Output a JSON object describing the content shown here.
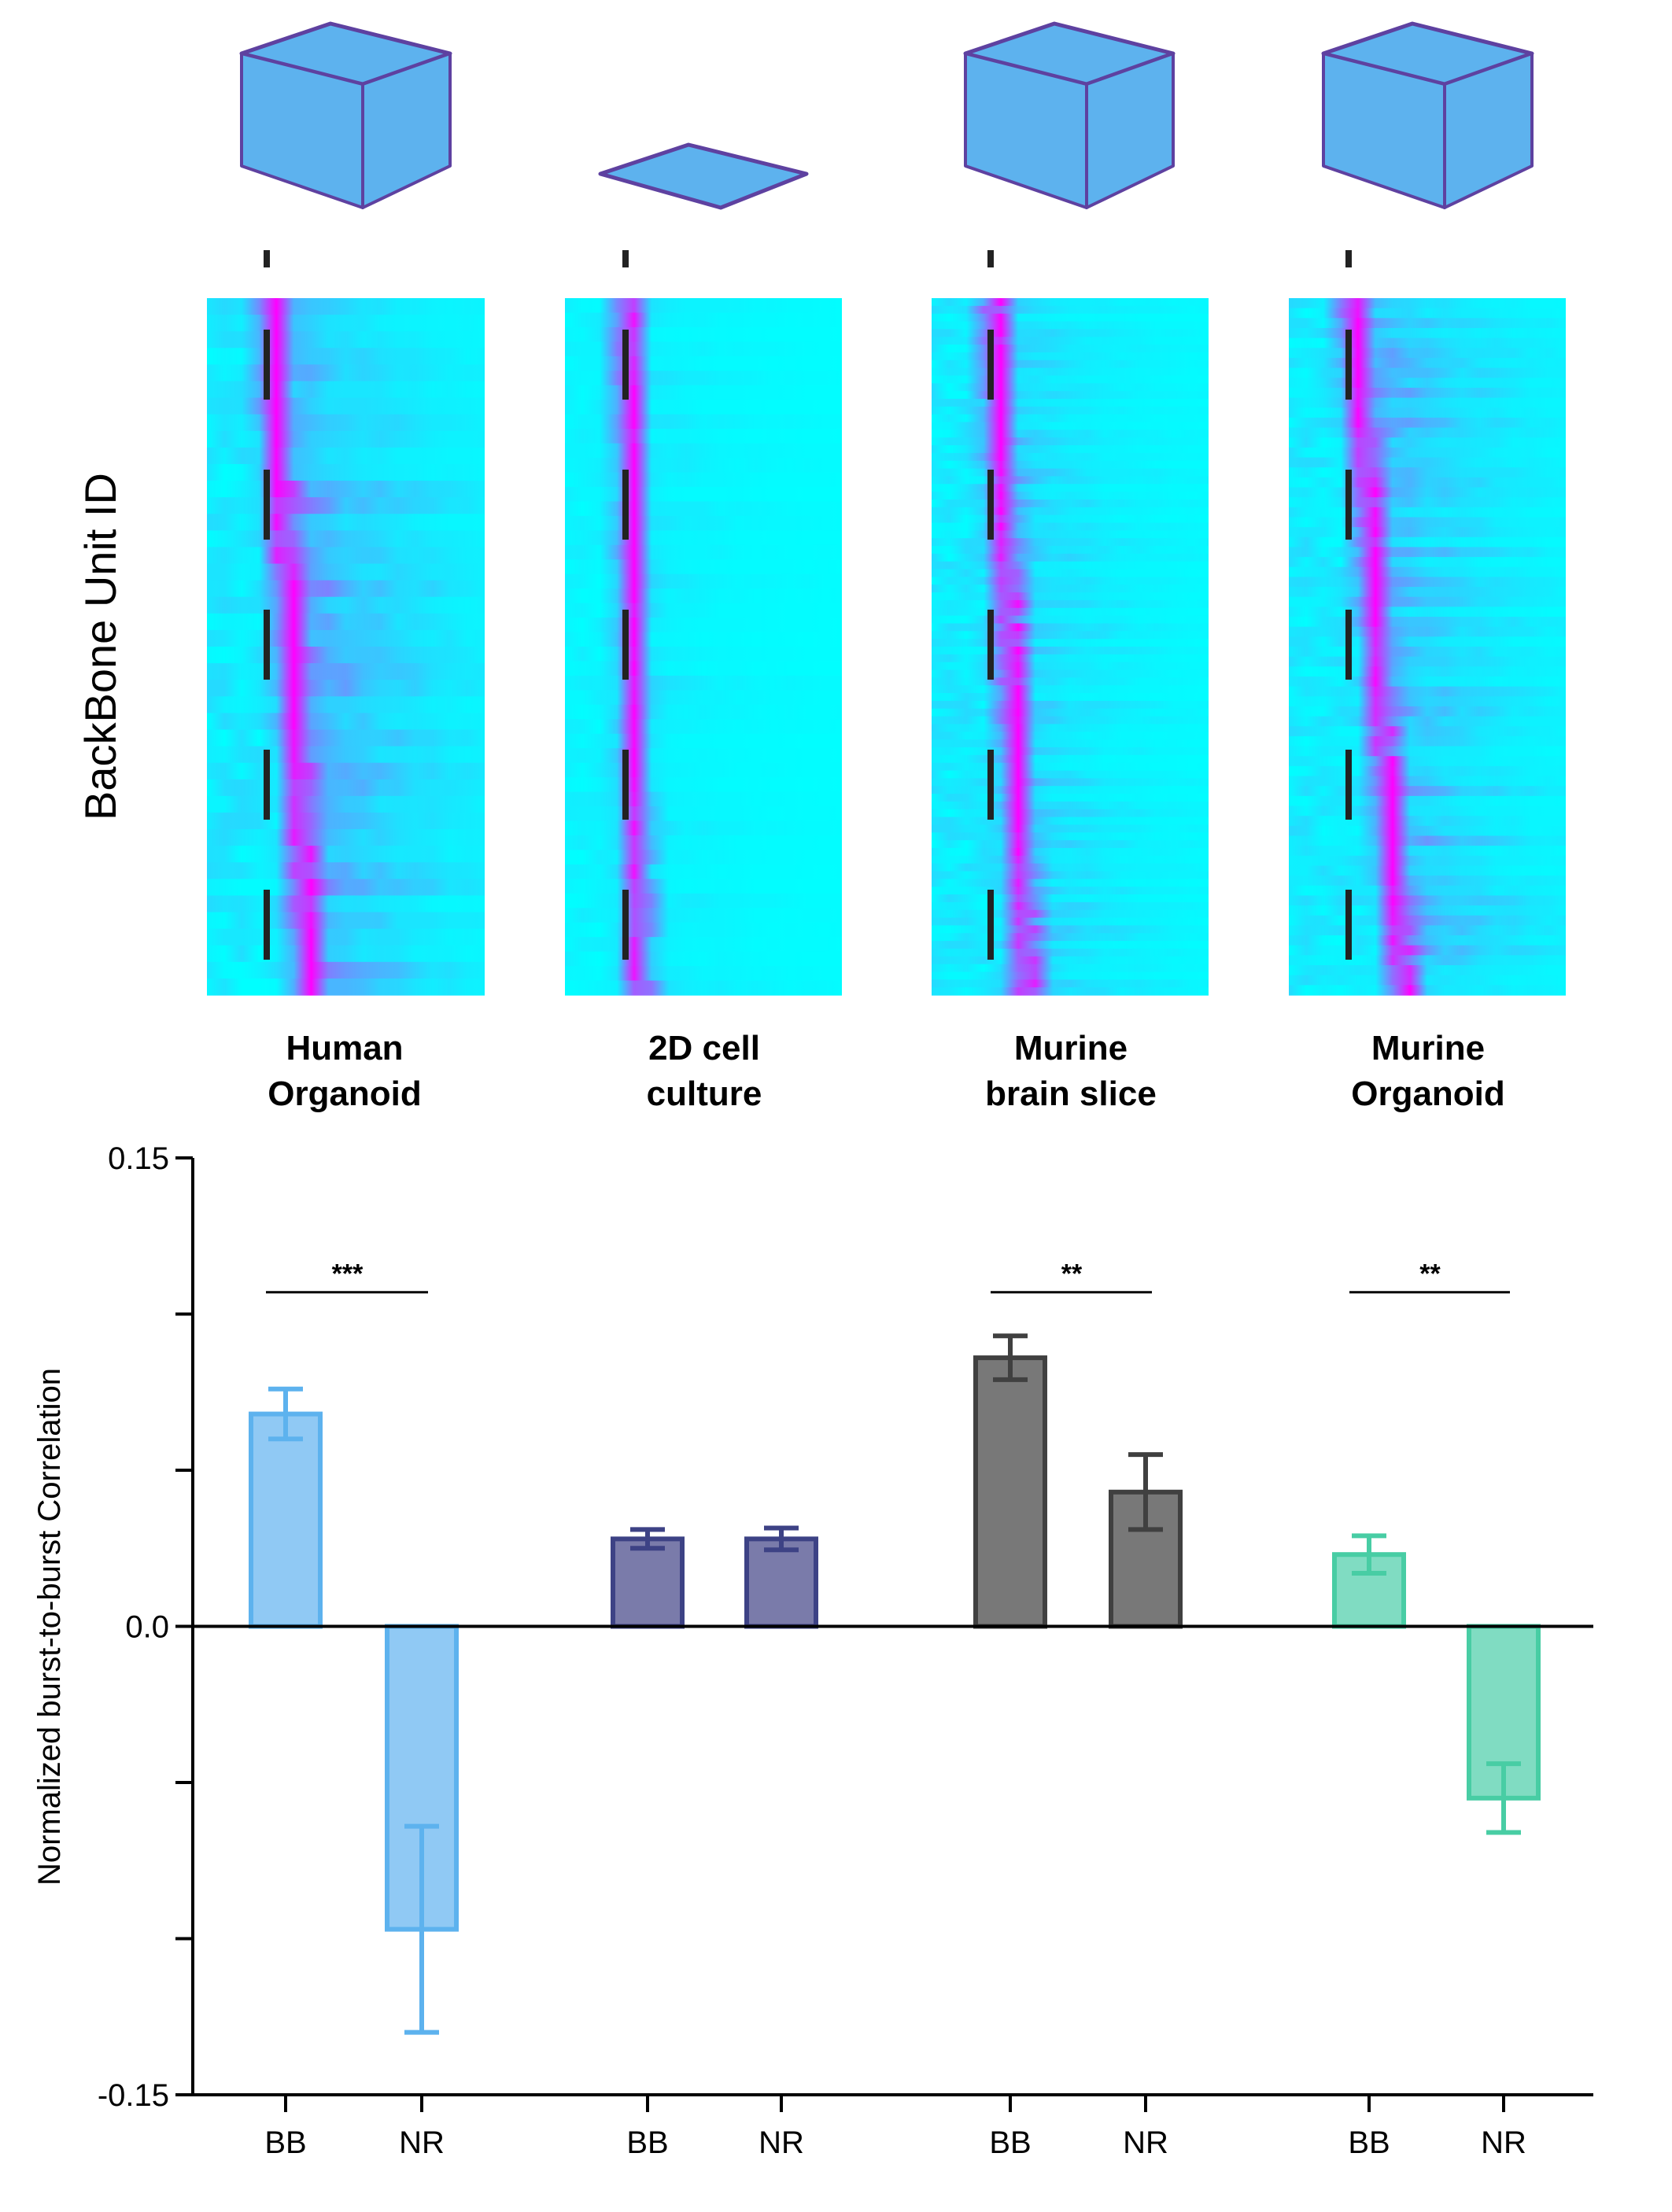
{
  "figure": {
    "heatmap_ylabel": "BackBone Unit ID",
    "conditions": [
      {
        "id": "human-organoid",
        "label_lines": [
          "Human",
          "Organoid"
        ],
        "icon": "cube-3d-icon",
        "bar_fill": "#90C9F4",
        "bar_edge": "#5DB2EE"
      },
      {
        "id": "2d-cell-culture",
        "label_lines": [
          "2D cell",
          "culture"
        ],
        "icon": "flat-plate-icon",
        "bar_fill": "#7A7BAA",
        "bar_edge": "#3D4285"
      },
      {
        "id": "murine-brain-slice",
        "label_lines": [
          "Murine",
          "brain slice"
        ],
        "icon": "cube-3d-icon",
        "bar_fill": "#787878",
        "bar_edge": "#404040"
      },
      {
        "id": "murine-organoid",
        "label_lines": [
          "Murine",
          "Organoid"
        ],
        "icon": "cube-3d-icon",
        "bar_fill": "#80DCC2",
        "bar_edge": "#48CDA4"
      }
    ],
    "icon_colors": {
      "fill": "#5DB2EE",
      "stroke": "#5E41A0"
    },
    "heatmap_colormap": {
      "name": "cool",
      "low": "#00FFFF",
      "high": "#FF00FF"
    },
    "heatmap_rows": [
      42,
      48,
      90,
      70
    ]
  },
  "chart_data": {
    "type": "bar",
    "title": "",
    "xlabel": "",
    "ylabel": "Normalized burst-to-burst Correlation",
    "ylim": [
      -0.15,
      0.15
    ],
    "yticks": [
      -0.15,
      -0.1,
      -0.05,
      0.0,
      0.05,
      0.1,
      0.15
    ],
    "ytick_labels": {
      "-0.15": "-0.15",
      "0.0": "0.0",
      "0.15": "0.15"
    },
    "grid": false,
    "groups": [
      "Human Organoid",
      "2D cell culture",
      "Murine brain slice",
      "Murine Organoid"
    ],
    "categories": [
      "BB",
      "NR"
    ],
    "series": [
      {
        "name": "Human Organoid",
        "values": [
          0.068,
          -0.097
        ],
        "errors": [
          0.008,
          0.033
        ]
      },
      {
        "name": "2D cell culture",
        "values": [
          0.028,
          0.028
        ],
        "errors": [
          0.003,
          0.0035
        ]
      },
      {
        "name": "Murine brain slice",
        "values": [
          0.086,
          0.043
        ],
        "errors": [
          0.007,
          0.012
        ]
      },
      {
        "name": "Murine Organoid",
        "values": [
          0.023,
          -0.055
        ],
        "errors": [
          0.006,
          0.011
        ]
      }
    ],
    "significance": [
      {
        "group": "Human Organoid",
        "label": "***",
        "y": 0.107
      },
      {
        "group": "Murine brain slice",
        "label": "**",
        "y": 0.107
      },
      {
        "group": "Murine Organoid",
        "label": "**",
        "y": 0.107
      }
    ]
  }
}
